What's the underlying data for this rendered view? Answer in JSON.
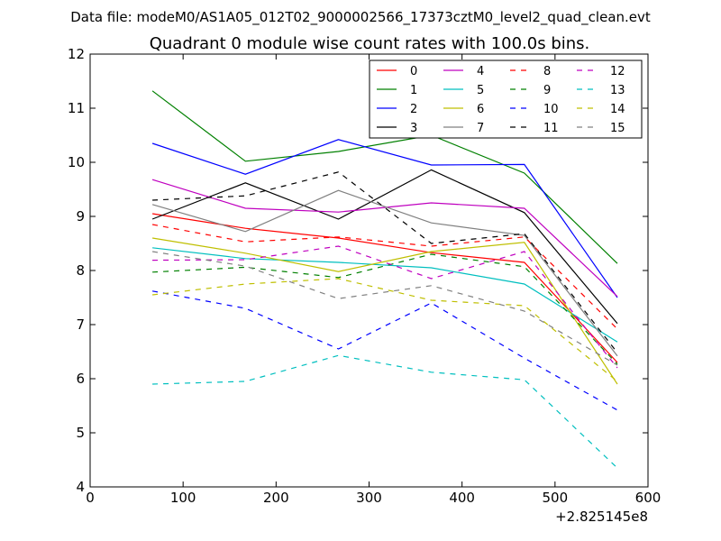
{
  "figure": {
    "suptitle": "Data file: modeM0/AS1A05_012T02_9000002566_17373cztM0_level2_quad_clean.evt",
    "offset_label": "+2.825145e8"
  },
  "chart_data": {
    "type": "line",
    "title": "Quadrant 0 module wise count rates with 100.0s bins.",
    "xlabel": "",
    "ylabel": "",
    "x_offset": "+2.825145e8",
    "xlim": [
      0,
      600
    ],
    "ylim": [
      4,
      12
    ],
    "x_ticks": [
      0,
      100,
      200,
      300,
      400,
      500,
      600
    ],
    "y_ticks": [
      4,
      5,
      6,
      7,
      8,
      9,
      10,
      11,
      12
    ],
    "grid": false,
    "legend": {
      "position": "top-right",
      "columns": 4
    },
    "x": [
      67,
      167,
      267,
      367,
      467,
      567
    ],
    "series": [
      {
        "name": "0",
        "color": "#ff0000",
        "dash": "solid",
        "values": [
          9.05,
          8.78,
          8.6,
          8.33,
          8.15,
          6.3
        ]
      },
      {
        "name": "1",
        "color": "#008000",
        "dash": "solid",
        "values": [
          11.32,
          10.02,
          10.2,
          10.5,
          9.8,
          8.13
        ]
      },
      {
        "name": "2",
        "color": "#0000ff",
        "dash": "solid",
        "values": [
          10.35,
          9.78,
          10.42,
          9.95,
          9.96,
          7.5
        ]
      },
      {
        "name": "3",
        "color": "#000000",
        "dash": "solid",
        "values": [
          8.95,
          9.62,
          8.95,
          9.86,
          9.07,
          7.02
        ]
      },
      {
        "name": "4",
        "color": "#bf00bf",
        "dash": "solid",
        "values": [
          9.68,
          9.15,
          9.08,
          9.25,
          9.15,
          7.52
        ]
      },
      {
        "name": "5",
        "color": "#00bfbf",
        "dash": "solid",
        "values": [
          8.42,
          8.22,
          8.15,
          8.05,
          7.75,
          6.68
        ]
      },
      {
        "name": "6",
        "color": "#bfbf00",
        "dash": "solid",
        "values": [
          8.6,
          8.32,
          7.98,
          8.35,
          8.52,
          5.9
        ]
      },
      {
        "name": "7",
        "color": "#808080",
        "dash": "solid",
        "values": [
          9.22,
          8.72,
          9.48,
          8.88,
          8.65,
          6.42
        ]
      },
      {
        "name": "8",
        "color": "#ff0000",
        "dash": "dashed",
        "values": [
          8.85,
          8.53,
          8.62,
          8.45,
          8.62,
          6.92
        ]
      },
      {
        "name": "9",
        "color": "#008000",
        "dash": "dashed",
        "values": [
          7.97,
          8.06,
          7.87,
          8.3,
          8.07,
          6.27
        ]
      },
      {
        "name": "10",
        "color": "#0000ff",
        "dash": "dashed",
        "values": [
          7.62,
          7.3,
          6.55,
          7.4,
          6.38,
          5.42
        ]
      },
      {
        "name": "11",
        "color": "#000000",
        "dash": "dashed",
        "values": [
          9.3,
          9.38,
          9.82,
          8.5,
          8.68,
          6.48
        ]
      },
      {
        "name": "12",
        "color": "#bf00bf",
        "dash": "dashed",
        "values": [
          8.19,
          8.2,
          8.45,
          7.85,
          8.35,
          6.2
        ]
      },
      {
        "name": "13",
        "color": "#00bfbf",
        "dash": "dashed",
        "values": [
          5.9,
          5.95,
          6.43,
          6.12,
          5.98,
          4.35
        ]
      },
      {
        "name": "14",
        "color": "#bfbf00",
        "dash": "dashed",
        "values": [
          7.55,
          7.75,
          7.85,
          7.45,
          7.35,
          5.95
        ]
      },
      {
        "name": "15",
        "color": "#808080",
        "dash": "dashed",
        "values": [
          8.35,
          8.08,
          7.48,
          7.72,
          7.25,
          6.25
        ]
      }
    ]
  }
}
